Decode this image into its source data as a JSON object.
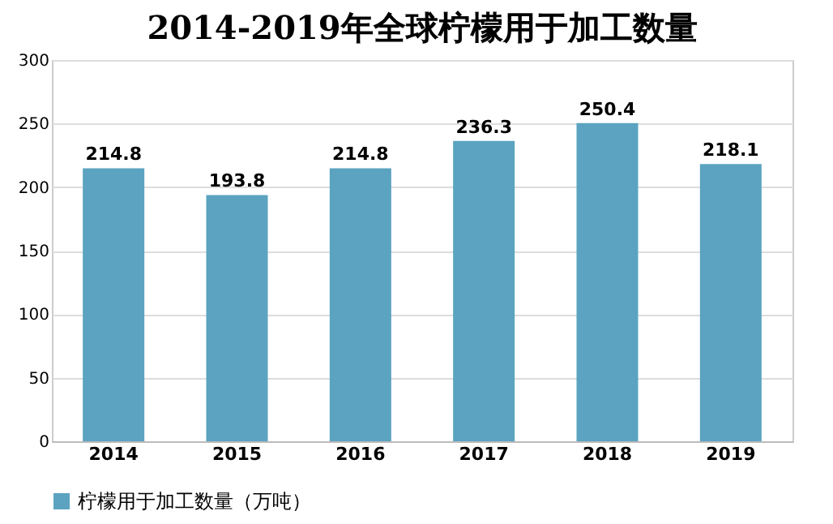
{
  "chart_data": {
    "type": "bar",
    "title": "2014-2019年全球柠檬用于加工数量",
    "categories": [
      "2014",
      "2015",
      "2016",
      "2017",
      "2018",
      "2019"
    ],
    "series": [
      {
        "name": "柠檬用于加工数量（万吨）",
        "color": "#5ba3c0",
        "values": [
          214.8,
          193.8,
          214.8,
          236.3,
          250.4,
          218.1
        ]
      }
    ],
    "ylim": [
      0,
      300
    ],
    "yticks": [
      0,
      50,
      100,
      150,
      200,
      250,
      300
    ],
    "grid": "y",
    "legend": "bottom",
    "data_labels": true
  }
}
